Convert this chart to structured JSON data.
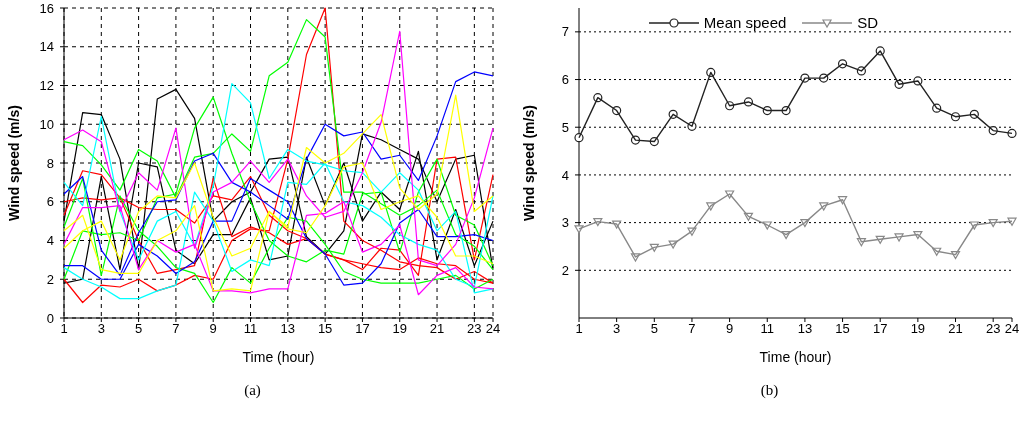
{
  "chart_data": [
    {
      "type": "line",
      "xlabel": "Time (hour)",
      "ylabel": "Wind speed (m/s)",
      "annotations": [
        "(a)"
      ],
      "x": [
        1,
        2,
        3,
        4,
        5,
        6,
        7,
        8,
        9,
        10,
        11,
        12,
        13,
        14,
        15,
        16,
        17,
        18,
        19,
        20,
        21,
        22,
        23,
        24
      ],
      "xlim": [
        1,
        24
      ],
      "xticks": [
        1,
        3,
        5,
        7,
        9,
        11,
        13,
        15,
        17,
        19,
        21,
        23,
        24
      ],
      "ylim": [
        0,
        16
      ],
      "yticks": [
        0,
        2,
        4,
        6,
        8,
        10,
        12,
        14,
        16
      ],
      "grid": true,
      "line_style": "solid",
      "series": [
        {
          "color": "#000000",
          "values": [
            1.8,
            2,
            7.3,
            2.5,
            8,
            7.8,
            3.5,
            2.8,
            4.3,
            4.3,
            6.2,
            3,
            3.2,
            8.3,
            5.8,
            8,
            5,
            6.5,
            5.6,
            8.6,
            3,
            5.6,
            2.7,
            5
          ]
        },
        {
          "color": "#000000",
          "values": [
            5,
            10.6,
            10.5,
            8.2,
            2.5,
            11.3,
            11.8,
            10.3,
            5,
            6,
            6.5,
            8.2,
            8.3,
            4.2,
            3.3,
            4.5,
            9.5,
            9.2,
            8.7,
            8.2,
            6,
            8.2,
            8.4,
            2.5
          ]
        },
        {
          "color": "#ff0000",
          "values": [
            5.3,
            7.6,
            7.4,
            6.2,
            5.7,
            5.6,
            5.6,
            4.9,
            6.3,
            6.1,
            7.3,
            5.3,
            4.5,
            4.1,
            3.3,
            3,
            2.5,
            3.6,
            3.5,
            2.2,
            8.2,
            8.3,
            3,
            7.4
          ]
        },
        {
          "color": "#ff0000",
          "values": [
            2,
            0.8,
            1.7,
            1.6,
            2,
            1.4,
            1.7,
            2.2,
            2,
            4,
            4.6,
            4.5,
            8.2,
            13.6,
            16,
            5,
            4,
            3.5,
            2.9,
            2.7,
            2.6,
            2,
            2.4,
            1.8
          ]
        },
        {
          "color": "#ff0000",
          "values": [
            6,
            6.2,
            6.1,
            6.2,
            4,
            2.3,
            2.5,
            2.7,
            7.2,
            4.2,
            4.7,
            4.4,
            3.8,
            4.1,
            3.3,
            3,
            2.8,
            2.6,
            2.5,
            3.1,
            2.8,
            2.7,
            2,
            1.8
          ]
        },
        {
          "color": "#00ff00",
          "values": [
            9.1,
            8.9,
            7.9,
            6.6,
            8.7,
            8.1,
            6.2,
            8.3,
            8.5,
            9.5,
            8.6,
            12.5,
            13.2,
            15.4,
            14.5,
            6.5,
            6.5,
            5.9,
            5.3,
            5.8,
            6.6,
            4.3,
            3.7,
            2.5
          ]
        },
        {
          "color": "#00ff00",
          "values": [
            4.7,
            7.2,
            2.2,
            6.3,
            4.5,
            3.7,
            2.6,
            2.3,
            0.8,
            2.6,
            1.8,
            3.6,
            5.2,
            5,
            3.8,
            2.4,
            2,
            1.8,
            1.8,
            1.8,
            2,
            2.2,
            1.5,
            2
          ]
        },
        {
          "color": "#00ff00",
          "values": [
            2,
            4.5,
            4.3,
            4.4,
            4,
            6.2,
            6.4,
            9.8,
            11.4,
            8.5,
            6,
            4,
            3.2,
            2.9,
            3.5,
            3.3,
            6.4,
            6.5,
            3.4,
            6.5,
            8.2,
            5.3,
            4.8,
            2.7
          ]
        },
        {
          "color": "#0000ff",
          "values": [
            6.4,
            7.3,
            3.5,
            2.2,
            4.4,
            6,
            6.1,
            8.1,
            8.5,
            7,
            6.5,
            5.8,
            5.1,
            8.2,
            10,
            9.4,
            9.6,
            8.2,
            8.4,
            7.1,
            9.4,
            12.2,
            12.7,
            12.5
          ]
        },
        {
          "color": "#0000ff",
          "values": [
            2.7,
            2.7,
            2,
            2,
            3.8,
            3.2,
            2.3,
            2.9,
            5,
            5,
            7.2,
            6.6,
            6,
            4.1,
            3.3,
            1.7,
            1.8,
            2.8,
            4.9,
            5.6,
            4.2,
            4.2,
            4.3,
            4
          ]
        },
        {
          "color": "#00ffff",
          "values": [
            7,
            5.8,
            10.4,
            5.5,
            3,
            5,
            5.5,
            3.7,
            6.8,
            12.1,
            11.1,
            7.2,
            8.7,
            8.1,
            7.9,
            7.6,
            7.5,
            6.5,
            7.5,
            6.6,
            4.5,
            5.5,
            1.3,
            1.5
          ]
        },
        {
          "color": "#00ffff",
          "values": [
            2.6,
            2,
            1.6,
            1,
            1,
            1.4,
            1.7,
            6.5,
            5,
            2.4,
            3,
            2.7,
            7,
            6.9,
            8,
            6,
            5.8,
            5.2,
            4.3,
            3.8,
            3.5,
            2,
            1.6,
            6.3
          ]
        },
        {
          "color": "#ff00ff",
          "values": [
            9.2,
            9.7,
            9.1,
            5.5,
            7.5,
            6.6,
            9.8,
            3.6,
            6.5,
            7,
            8.1,
            7,
            8.2,
            6.3,
            5.2,
            5.5,
            7.5,
            10.1,
            14.8,
            3,
            2.7,
            3.8,
            6.2,
            9.8
          ]
        },
        {
          "color": "#ff00ff",
          "values": [
            3.8,
            5.7,
            5.7,
            5.8,
            2.5,
            4,
            3.4,
            3.8,
            1.4,
            1.4,
            1.3,
            1.5,
            1.5,
            5.3,
            5.4,
            6,
            3.4,
            3.8,
            4.8,
            1.2,
            2.2,
            2.6,
            1.6,
            1.5
          ]
        },
        {
          "color": "#ffff00",
          "values": [
            3.6,
            4.5,
            5,
            3,
            5.5,
            6.3,
            6.2,
            8,
            5.2,
            3.2,
            3.6,
            5.5,
            4.7,
            8.8,
            8,
            8.5,
            9.5,
            10.5,
            6.7,
            5.6,
            6.4,
            11.5,
            5.5,
            6.3
          ]
        },
        {
          "color": "#ffff00",
          "values": [
            4.5,
            5.3,
            2.5,
            2.3,
            2.3,
            4,
            4.5,
            5.8,
            1.4,
            1.5,
            1.4,
            5.5,
            4.6,
            4.4,
            5.8,
            7.8,
            8,
            5.6,
            6,
            6.3,
            5.2,
            3.2,
            3.2,
            2.8
          ]
        }
      ]
    },
    {
      "type": "line",
      "xlabel": "Time (hour)",
      "ylabel": "Wind speed (m/s)",
      "annotations": [
        "(b)"
      ],
      "x": [
        1,
        2,
        3,
        4,
        5,
        6,
        7,
        8,
        9,
        10,
        11,
        12,
        13,
        14,
        15,
        16,
        17,
        18,
        19,
        20,
        21,
        22,
        23,
        24
      ],
      "xlim": [
        1,
        24
      ],
      "xticks": [
        1,
        3,
        5,
        7,
        9,
        11,
        13,
        15,
        17,
        19,
        21,
        23,
        24
      ],
      "ylim": [
        1,
        7.5
      ],
      "yticks": [
        2,
        3,
        4,
        5,
        6,
        7
      ],
      "grid": "y",
      "legend": "top",
      "line_style": "solid",
      "series": [
        {
          "name": "Mean speed",
          "color": "#222222",
          "marker": "circle",
          "values": [
            4.78,
            5.62,
            5.35,
            4.73,
            4.7,
            5.27,
            5.02,
            6.15,
            5.45,
            5.53,
            5.35,
            5.35,
            6.03,
            6.03,
            6.33,
            6.18,
            6.6,
            5.9,
            5.97,
            5.4,
            5.22,
            5.27,
            4.93,
            4.87
          ]
        },
        {
          "name": "SD",
          "color": "#888888",
          "marker": "triangle",
          "values": [
            2.87,
            3.02,
            2.97,
            2.28,
            2.48,
            2.55,
            2.82,
            3.35,
            3.6,
            3.13,
            2.95,
            2.75,
            3,
            3.35,
            3.48,
            2.6,
            2.65,
            2.7,
            2.75,
            2.4,
            2.33,
            2.95,
            3,
            3.03
          ]
        }
      ]
    }
  ]
}
